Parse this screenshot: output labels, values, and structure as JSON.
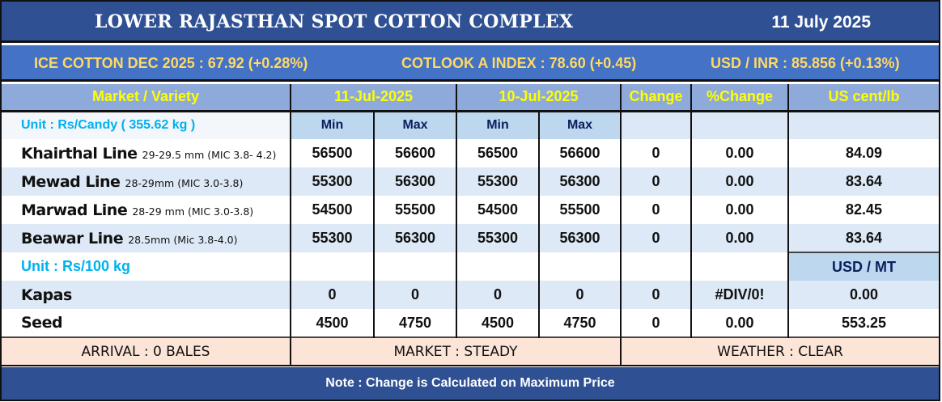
{
  "header": {
    "title": "LOWER RAJASTHAN SPOT COTTON COMPLEX",
    "date": "11 July 2025"
  },
  "ticker": {
    "ice": "ICE COTTON DEC 2025 : 67.92 (+0.28%)",
    "cotlook": "COTLOOK A INDEX : 78.60 (+0.45)",
    "usdinr": "USD / INR : 85.856 (+0.13%)"
  },
  "columns": {
    "market": "Market / Variety",
    "d1": "11-Jul-2025",
    "d2": "10-Jul-2025",
    "change": "Change",
    "pct": "%Change",
    "us": "US cent/lb",
    "min": "Min",
    "max": "Max"
  },
  "unit_candy": "Unit : Rs/Candy ( 355.62 kg )",
  "rows": [
    {
      "name": "Khairthal Line",
      "spec": "29-29.5 mm (MIC 3.8- 4.2)",
      "min1": "56500",
      "max1": "56600",
      "min2": "56500",
      "max2": "56600",
      "change": "0",
      "pct": "0.00",
      "us": "84.09"
    },
    {
      "name": "Mewad Line",
      "spec": "28-29mm (MIC 3.0-3.8)",
      "min1": "55300",
      "max1": "56300",
      "min2": "55300",
      "max2": "56300",
      "change": "0",
      "pct": "0.00",
      "us": "83.64"
    },
    {
      "name": "Marwad Line",
      "spec": "28-29 mm (MIC 3.0-3.8)",
      "min1": "54500",
      "max1": "55500",
      "min2": "54500",
      "max2": "55500",
      "change": "0",
      "pct": "0.00",
      "us": "82.45"
    },
    {
      "name": "Beawar Line",
      "spec": "28.5mm (Mic 3.8-4.0)",
      "min1": "55300",
      "max1": "56300",
      "min2": "55300",
      "max2": "56300",
      "change": "0",
      "pct": "0.00",
      "us": "83.64"
    }
  ],
  "unit_kg": "Unit : Rs/100 kg",
  "usd_mt": "USD / MT",
  "rows2": [
    {
      "name": "Kapas",
      "min1": "0",
      "max1": "0",
      "min2": "0",
      "max2": "0",
      "change": "0",
      "pct": "#DIV/0!",
      "us": "0.00"
    },
    {
      "name": "Seed",
      "min1": "4500",
      "max1": "4750",
      "min2": "4500",
      "max2": "4750",
      "change": "0",
      "pct": "0.00",
      "us": "553.25"
    }
  ],
  "footer": {
    "arrival": "ARRIVAL : 0 BALES",
    "market": "MARKET : STEADY",
    "weather": "WEATHER : CLEAR"
  },
  "note": "Note : Change is Calculated on Maximum Price"
}
